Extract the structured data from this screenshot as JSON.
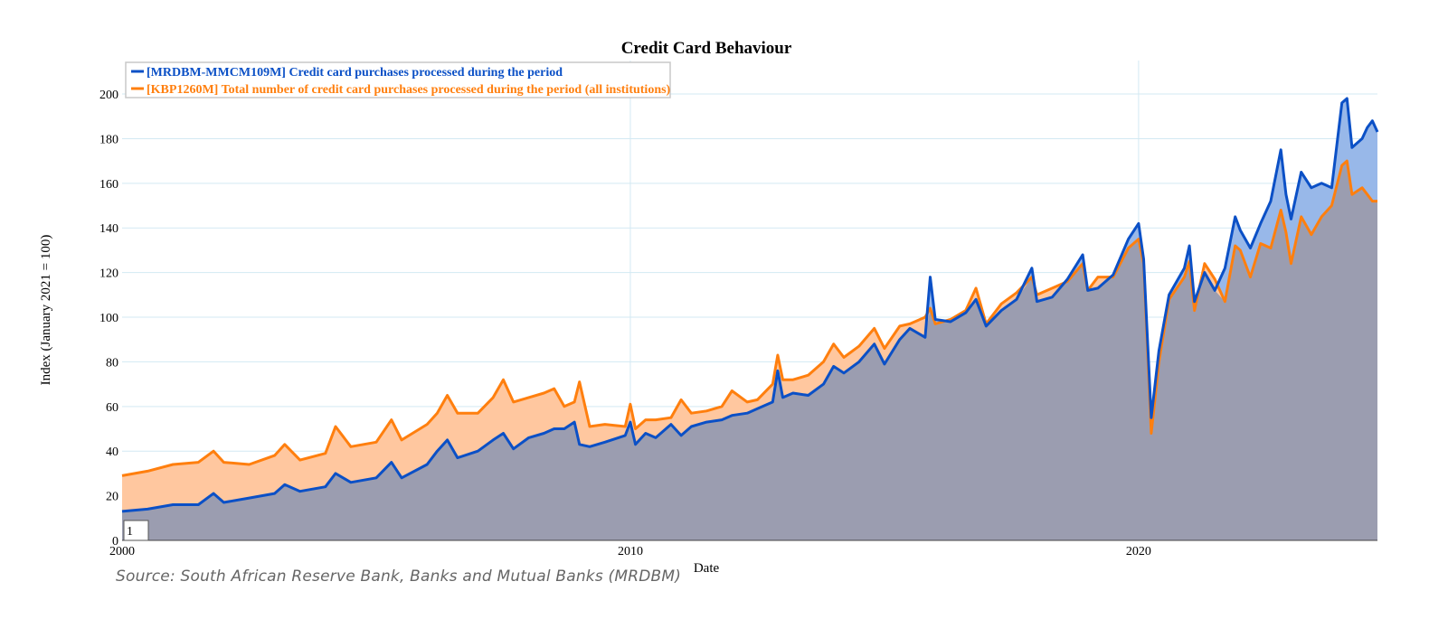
{
  "source": "Source: South African Reserve Bank, Banks and Mutual Banks (MRDBM)",
  "colors": {
    "series1": "#0b50c6",
    "series2": "#ff7f0e",
    "series1_fill": "#98b8e9",
    "series2_fill": "#ffc79f",
    "overlap_fill": "#9b9db0",
    "grid": "#d3e9f3"
  },
  "page_badge": "1",
  "chart_data": {
    "type": "area",
    "title": "Credit Card Behaviour",
    "xlabel": "Date",
    "ylabel": "Index (January 2021 = 100)",
    "xlim": [
      2000,
      2024.7
    ],
    "ylim": [
      0,
      215
    ],
    "x_ticks": [
      2000,
      2010,
      2020
    ],
    "y_ticks": [
      0,
      20,
      40,
      60,
      80,
      100,
      120,
      140,
      160,
      180,
      200
    ],
    "grid": true,
    "legend_position": "top-left",
    "series": [
      {
        "name": "[MRDBM-MMCM109M] Credit card purchases processed during the period",
        "points": [
          [
            2000.0,
            13
          ],
          [
            2000.5,
            14
          ],
          [
            2001.0,
            16
          ],
          [
            2001.5,
            16
          ],
          [
            2001.8,
            21
          ],
          [
            2002.0,
            17
          ],
          [
            2002.5,
            19
          ],
          [
            2003.0,
            21
          ],
          [
            2003.2,
            25
          ],
          [
            2003.5,
            22
          ],
          [
            2004.0,
            24
          ],
          [
            2004.2,
            30
          ],
          [
            2004.5,
            26
          ],
          [
            2005.0,
            28
          ],
          [
            2005.3,
            35
          ],
          [
            2005.5,
            28
          ],
          [
            2006.0,
            34
          ],
          [
            2006.2,
            40
          ],
          [
            2006.4,
            45
          ],
          [
            2006.6,
            37
          ],
          [
            2007.0,
            40
          ],
          [
            2007.3,
            45
          ],
          [
            2007.5,
            48
          ],
          [
            2007.7,
            41
          ],
          [
            2008.0,
            46
          ],
          [
            2008.3,
            48
          ],
          [
            2008.5,
            50
          ],
          [
            2008.7,
            50
          ],
          [
            2008.9,
            53
          ],
          [
            2009.0,
            43
          ],
          [
            2009.2,
            42
          ],
          [
            2009.5,
            44
          ],
          [
            2009.9,
            47
          ],
          [
            2010.0,
            53
          ],
          [
            2010.1,
            43
          ],
          [
            2010.3,
            48
          ],
          [
            2010.5,
            46
          ],
          [
            2010.8,
            52
          ],
          [
            2011.0,
            47
          ],
          [
            2011.2,
            51
          ],
          [
            2011.5,
            53
          ],
          [
            2011.8,
            54
          ],
          [
            2012.0,
            56
          ],
          [
            2012.3,
            57
          ],
          [
            2012.5,
            59
          ],
          [
            2012.8,
            62
          ],
          [
            2012.9,
            76
          ],
          [
            2013.0,
            64
          ],
          [
            2013.2,
            66
          ],
          [
            2013.5,
            65
          ],
          [
            2013.8,
            70
          ],
          [
            2014.0,
            78
          ],
          [
            2014.2,
            75
          ],
          [
            2014.5,
            80
          ],
          [
            2014.8,
            88
          ],
          [
            2015.0,
            79
          ],
          [
            2015.3,
            90
          ],
          [
            2015.5,
            95
          ],
          [
            2015.8,
            91
          ],
          [
            2015.9,
            118
          ],
          [
            2016.0,
            99
          ],
          [
            2016.3,
            98
          ],
          [
            2016.6,
            102
          ],
          [
            2016.8,
            108
          ],
          [
            2017.0,
            96
          ],
          [
            2017.3,
            103
          ],
          [
            2017.6,
            108
          ],
          [
            2017.9,
            122
          ],
          [
            2018.0,
            107
          ],
          [
            2018.3,
            109
          ],
          [
            2018.6,
            117
          ],
          [
            2018.9,
            128
          ],
          [
            2019.0,
            112
          ],
          [
            2019.2,
            113
          ],
          [
            2019.5,
            119
          ],
          [
            2019.8,
            135
          ],
          [
            2020.0,
            142
          ],
          [
            2020.1,
            126
          ],
          [
            2020.25,
            55
          ],
          [
            2020.4,
            85
          ],
          [
            2020.6,
            110
          ],
          [
            2020.9,
            122
          ],
          [
            2021.0,
            132
          ],
          [
            2021.1,
            107
          ],
          [
            2021.3,
            120
          ],
          [
            2021.5,
            112
          ],
          [
            2021.7,
            122
          ],
          [
            2021.9,
            145
          ],
          [
            2022.0,
            139
          ],
          [
            2022.2,
            131
          ],
          [
            2022.4,
            142
          ],
          [
            2022.6,
            152
          ],
          [
            2022.8,
            175
          ],
          [
            2022.9,
            155
          ],
          [
            2023.0,
            144
          ],
          [
            2023.2,
            165
          ],
          [
            2023.4,
            158
          ],
          [
            2023.6,
            160
          ],
          [
            2023.8,
            158
          ],
          [
            2024.0,
            196
          ],
          [
            2024.1,
            198
          ],
          [
            2024.2,
            176
          ],
          [
            2024.4,
            180
          ],
          [
            2024.5,
            185
          ],
          [
            2024.6,
            188
          ],
          [
            2024.7,
            183
          ]
        ]
      },
      {
        "name": "[KBP1260M] Total number of credit card purchases processed during the period (all institutions)",
        "points": [
          [
            2000.0,
            29
          ],
          [
            2000.5,
            31
          ],
          [
            2001.0,
            34
          ],
          [
            2001.5,
            35
          ],
          [
            2001.8,
            40
          ],
          [
            2002.0,
            35
          ],
          [
            2002.5,
            34
          ],
          [
            2003.0,
            38
          ],
          [
            2003.2,
            43
          ],
          [
            2003.5,
            36
          ],
          [
            2004.0,
            39
          ],
          [
            2004.2,
            51
          ],
          [
            2004.5,
            42
          ],
          [
            2005.0,
            44
          ],
          [
            2005.3,
            54
          ],
          [
            2005.5,
            45
          ],
          [
            2006.0,
            52
          ],
          [
            2006.2,
            57
          ],
          [
            2006.4,
            65
          ],
          [
            2006.6,
            57
          ],
          [
            2007.0,
            57
          ],
          [
            2007.3,
            64
          ],
          [
            2007.5,
            72
          ],
          [
            2007.7,
            62
          ],
          [
            2008.0,
            64
          ],
          [
            2008.3,
            66
          ],
          [
            2008.5,
            68
          ],
          [
            2008.7,
            60
          ],
          [
            2008.9,
            62
          ],
          [
            2009.0,
            71
          ],
          [
            2009.2,
            51
          ],
          [
            2009.5,
            52
          ],
          [
            2009.9,
            51
          ],
          [
            2010.0,
            61
          ],
          [
            2010.1,
            50
          ],
          [
            2010.3,
            54
          ],
          [
            2010.5,
            54
          ],
          [
            2010.8,
            55
          ],
          [
            2011.0,
            63
          ],
          [
            2011.2,
            57
          ],
          [
            2011.5,
            58
          ],
          [
            2011.8,
            60
          ],
          [
            2012.0,
            67
          ],
          [
            2012.3,
            62
          ],
          [
            2012.5,
            63
          ],
          [
            2012.8,
            70
          ],
          [
            2012.9,
            83
          ],
          [
            2013.0,
            72
          ],
          [
            2013.2,
            72
          ],
          [
            2013.5,
            74
          ],
          [
            2013.8,
            80
          ],
          [
            2014.0,
            88
          ],
          [
            2014.2,
            82
          ],
          [
            2014.5,
            87
          ],
          [
            2014.8,
            95
          ],
          [
            2015.0,
            86
          ],
          [
            2015.3,
            96
          ],
          [
            2015.5,
            97
          ],
          [
            2015.8,
            100
          ],
          [
            2015.9,
            104
          ],
          [
            2016.0,
            97
          ],
          [
            2016.3,
            99
          ],
          [
            2016.6,
            103
          ],
          [
            2016.8,
            113
          ],
          [
            2017.0,
            97
          ],
          [
            2017.3,
            106
          ],
          [
            2017.6,
            111
          ],
          [
            2017.9,
            118
          ],
          [
            2018.0,
            110
          ],
          [
            2018.3,
            113
          ],
          [
            2018.6,
            116
          ],
          [
            2018.9,
            124
          ],
          [
            2019.0,
            112
          ],
          [
            2019.2,
            118
          ],
          [
            2019.5,
            118
          ],
          [
            2019.8,
            131
          ],
          [
            2020.0,
            135
          ],
          [
            2020.1,
            124
          ],
          [
            2020.25,
            48
          ],
          [
            2020.4,
            80
          ],
          [
            2020.6,
            108
          ],
          [
            2020.9,
            118
          ],
          [
            2021.0,
            125
          ],
          [
            2021.1,
            103
          ],
          [
            2021.3,
            124
          ],
          [
            2021.5,
            117
          ],
          [
            2021.7,
            107
          ],
          [
            2021.9,
            132
          ],
          [
            2022.0,
            130
          ],
          [
            2022.2,
            118
          ],
          [
            2022.4,
            133
          ],
          [
            2022.6,
            131
          ],
          [
            2022.8,
            148
          ],
          [
            2022.9,
            138
          ],
          [
            2023.0,
            124
          ],
          [
            2023.2,
            145
          ],
          [
            2023.4,
            137
          ],
          [
            2023.6,
            145
          ],
          [
            2023.8,
            150
          ],
          [
            2024.0,
            168
          ],
          [
            2024.1,
            170
          ],
          [
            2024.2,
            155
          ],
          [
            2024.4,
            158
          ],
          [
            2024.5,
            155
          ],
          [
            2024.6,
            152
          ],
          [
            2024.7,
            152
          ]
        ]
      }
    ]
  }
}
